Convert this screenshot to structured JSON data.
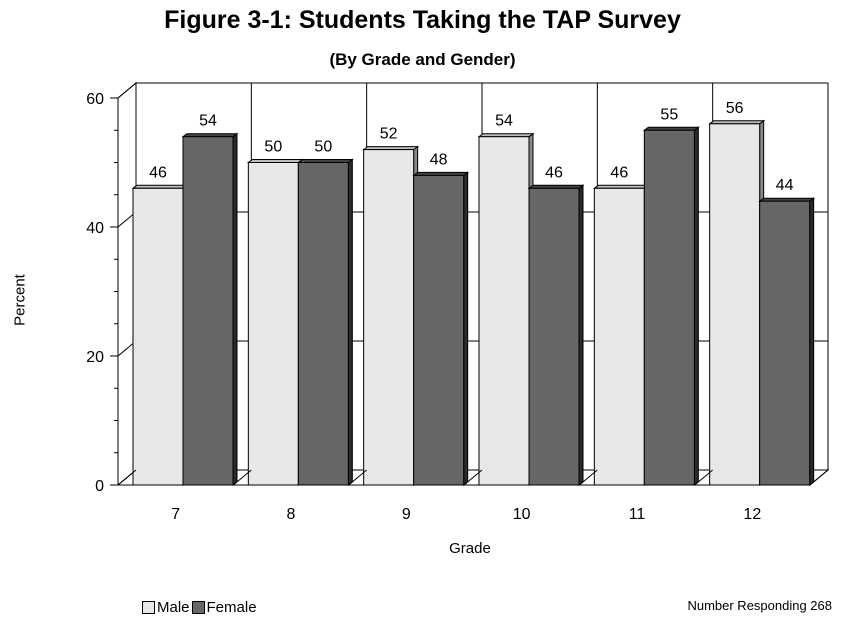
{
  "chart_data": {
    "type": "bar",
    "title": "Figure 3-1: Students Taking the TAP Survey",
    "subtitle": "(By Grade and Gender)",
    "xlabel": "Grade",
    "ylabel": "Percent",
    "categories": [
      "7",
      "8",
      "9",
      "10",
      "11",
      "12"
    ],
    "series": [
      {
        "name": "Male",
        "values": [
          46,
          50,
          52,
          54,
          46,
          56
        ],
        "color": "#e8e8e8"
      },
      {
        "name": "Female",
        "values": [
          54,
          50,
          48,
          46,
          55,
          44
        ],
        "color": "#666666"
      }
    ],
    "ylim": [
      0,
      60
    ],
    "yticks": [
      0,
      20,
      40,
      60
    ],
    "grid": true,
    "legend": "bottom-left",
    "three_d": true
  },
  "footnote": "Number Responding 268"
}
